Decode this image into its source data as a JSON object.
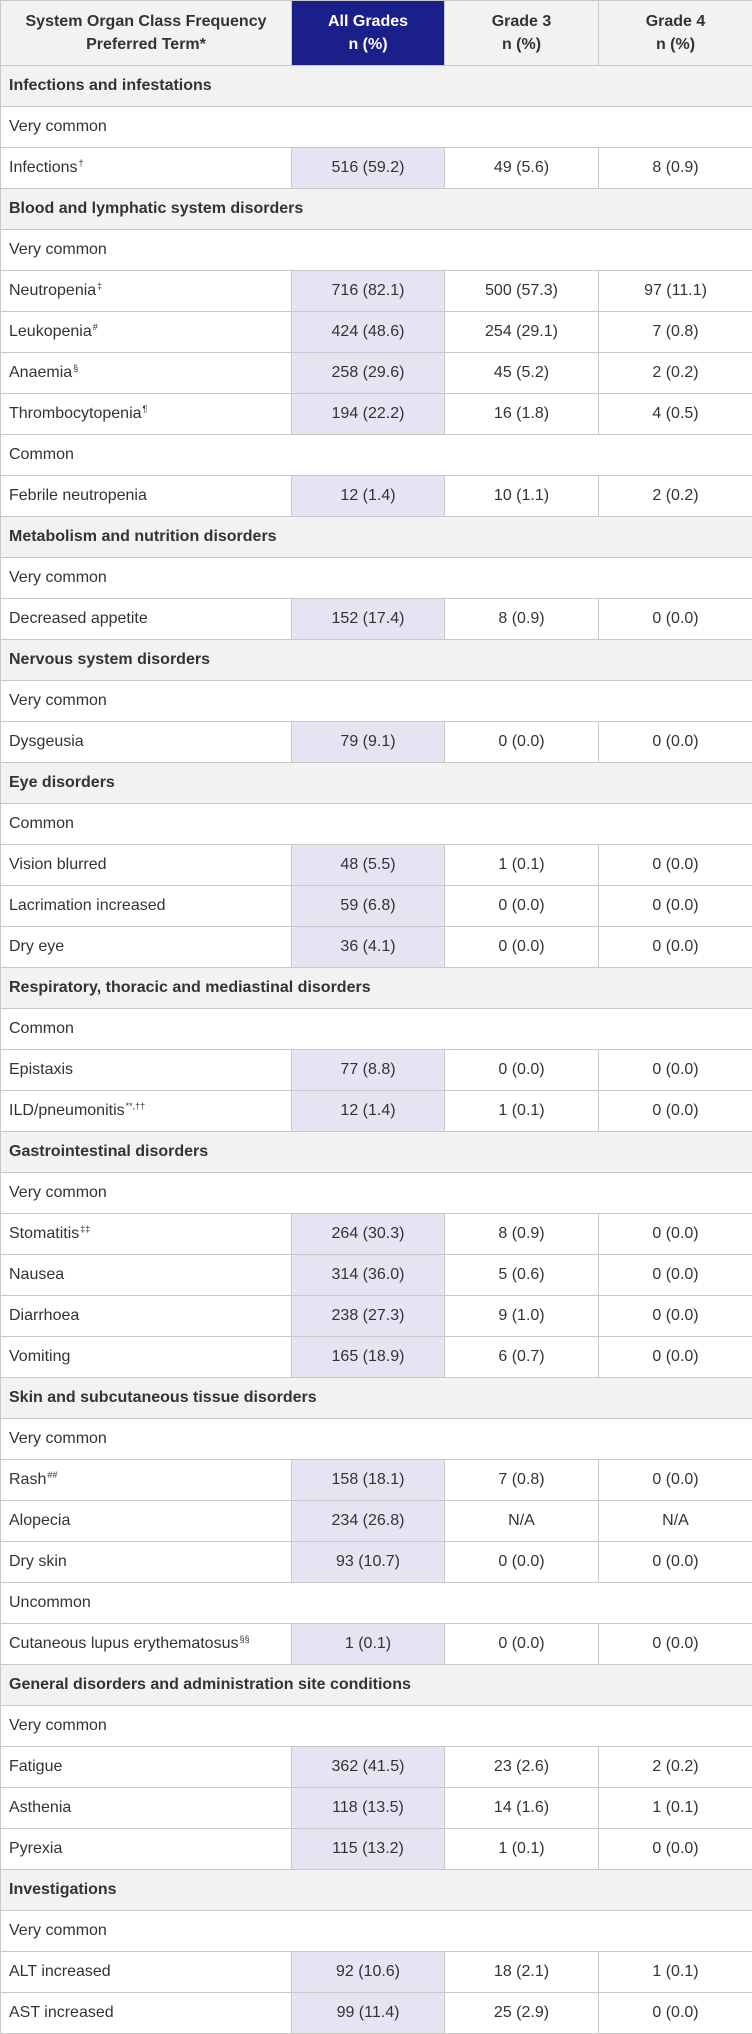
{
  "header": {
    "col1_line1": "System Organ Class Frequency",
    "col1_line2": "Preferred Term*",
    "col2_line1": "All Grades",
    "col2_line2": "n (%)",
    "col3_line1": "Grade 3",
    "col3_line2": "n (%)",
    "col4_line1": "Grade 4",
    "col4_line2": "n (%)"
  },
  "colors": {
    "all_grades_header": "#1b1f8a",
    "all_grades_cells": "#e5e4f3",
    "section_bg": "#f2f2f2"
  },
  "rows": [
    {
      "type": "soc",
      "text": "Infections and infestations"
    },
    {
      "type": "freq",
      "text": "Very common"
    },
    {
      "type": "term",
      "term": "Infections",
      "sup": "†",
      "all": "516 (59.2)",
      "g3": "49 (5.6)",
      "g4": "8 (0.9)"
    },
    {
      "type": "soc",
      "text": "Blood and lymphatic system disorders"
    },
    {
      "type": "freq",
      "text": "Very common"
    },
    {
      "type": "term",
      "term": "Neutropenia",
      "sup": "‡",
      "all": "716 (82.1)",
      "g3": "500 (57.3)",
      "g4": "97 (11.1)"
    },
    {
      "type": "term",
      "term": "Leukopenia",
      "sup": "#",
      "all": "424 (48.6)",
      "g3": "254 (29.1)",
      "g4": "7 (0.8)"
    },
    {
      "type": "term",
      "term": "Anaemia",
      "sup": "§",
      "all": "258 (29.6)",
      "g3": "45 (5.2)",
      "g4": "2 (0.2)"
    },
    {
      "type": "term",
      "term": "Thrombocytopenia",
      "sup": "¶",
      "all": "194 (22.2)",
      "g3": "16 (1.8)",
      "g4": "4 (0.5)"
    },
    {
      "type": "freq",
      "text": " Common"
    },
    {
      "type": "term",
      "term": "Febrile neutropenia",
      "sup": "",
      "all": "12 (1.4)",
      "g3": "10 (1.1)",
      "g4": "2 (0.2)"
    },
    {
      "type": "soc",
      "text": "Metabolism and nutrition disorders"
    },
    {
      "type": "freq",
      "text": "Very common"
    },
    {
      "type": "term",
      "term": "Decreased appetite",
      "sup": "",
      "all": "152 (17.4)",
      "g3": "8 (0.9)",
      "g4": "0 (0.0)"
    },
    {
      "type": "soc",
      "text": "Nervous system disorders"
    },
    {
      "type": "freq",
      "text": "Very common"
    },
    {
      "type": "term",
      "term": "Dysgeusia",
      "sup": "",
      "all": "79 (9.1)",
      "g3": "0 (0.0)",
      "g4": "0 (0.0)"
    },
    {
      "type": "soc",
      "text": "Eye disorders"
    },
    {
      "type": "freq",
      "text": "Common"
    },
    {
      "type": "term",
      "term": "Vision blurred",
      "sup": "",
      "all": "48 (5.5)",
      "g3": "1 (0.1)",
      "g4": "0 (0.0)"
    },
    {
      "type": "term",
      "term": "Lacrimation increased",
      "sup": "",
      "all": "59 (6.8)",
      "g3": "0 (0.0)",
      "g4": "0 (0.0)"
    },
    {
      "type": "term",
      "term": "Dry eye",
      "sup": "",
      "all": "36 (4.1)",
      "g3": "0 (0.0)",
      "g4": "0 (0.0)"
    },
    {
      "type": "soc",
      "text": "Respiratory, thoracic and mediastinal disorders"
    },
    {
      "type": "freq",
      "text": "Common"
    },
    {
      "type": "term",
      "term": "Epistaxis",
      "sup": "",
      "all": "77 (8.8)",
      "g3": "0 (0.0)",
      "g4": "0 (0.0)"
    },
    {
      "type": "term",
      "term": "ILD/pneumonitis",
      "sup": "**,††",
      "all": "12 (1.4)",
      "g3": "1 (0.1)",
      "g4": "0 (0.0)"
    },
    {
      "type": "soc",
      "text": "Gastrointestinal disorders"
    },
    {
      "type": "freq",
      "text": "Very common"
    },
    {
      "type": "term",
      "term": "Stomatitis",
      "sup": "‡‡",
      "all": "264 (30.3)",
      "g3": "8 (0.9)",
      "g4": "0 (0.0)"
    },
    {
      "type": "term",
      "term": "Nausea",
      "sup": "",
      "all": "314 (36.0)",
      "g3": "5 (0.6)",
      "g4": "0 (0.0)"
    },
    {
      "type": "term",
      "term": "Diarrhoea",
      "sup": "",
      "all": "238 (27.3)",
      "g3": "9 (1.0)",
      "g4": "0 (0.0)"
    },
    {
      "type": "term",
      "term": "Vomiting",
      "sup": "",
      "all": "165 (18.9)",
      "g3": "6 (0.7)",
      "g4": "0 (0.0)"
    },
    {
      "type": "soc",
      "text": "Skin and subcutaneous tissue disorders"
    },
    {
      "type": "freq",
      "text": "Very common"
    },
    {
      "type": "term",
      "term": "Rash",
      "sup": "##",
      "all": "158 (18.1)",
      "g3": "7 (0.8)",
      "g4": "0 (0.0)"
    },
    {
      "type": "term",
      "term": "Alopecia",
      "sup": "",
      "all": "234 (26.8)",
      "g3": "N/A",
      "g4": "N/A"
    },
    {
      "type": "term",
      "term": "Dry skin",
      "sup": "",
      "all": "93 (10.7)",
      "g3": "0 (0.0)",
      "g4": "0 (0.0)"
    },
    {
      "type": "freq",
      "text": "Uncommon"
    },
    {
      "type": "term",
      "term": "Cutaneous lupus erythematosus",
      "sup": "§§",
      "all": "1 (0.1)",
      "g3": "0 (0.0)",
      "g4": "0 (0.0)"
    },
    {
      "type": "soc",
      "text": "General disorders and administration site conditions"
    },
    {
      "type": "freq",
      "text": "Very common"
    },
    {
      "type": "term",
      "term": "Fatigue",
      "sup": "",
      "all": "362 (41.5)",
      "g3": "23 (2.6)",
      "g4": "2 (0.2)"
    },
    {
      "type": "term",
      "term": "Asthenia",
      "sup": "",
      "all": "118 (13.5)",
      "g3": "14 (1.6)",
      "g4": "1 (0.1)"
    },
    {
      "type": "term",
      "term": "Pyrexia",
      "sup": "",
      "all": "115 (13.2)",
      "g3": "1 (0.1)",
      "g4": "0 (0.0)"
    },
    {
      "type": "soc",
      "text": "Investigations"
    },
    {
      "type": "freq",
      "text": "Very common"
    },
    {
      "type": "term",
      "term": "ALT increased",
      "sup": "",
      "all": "92 (10.6)",
      "g3": "18 (2.1)",
      "g4": "1 (0.1)"
    },
    {
      "type": "term",
      "term": "AST increased",
      "sup": "",
      "all": "99 (11.4)",
      "g3": "25 (2.9)",
      "g4": "0 (0.0)"
    }
  ]
}
